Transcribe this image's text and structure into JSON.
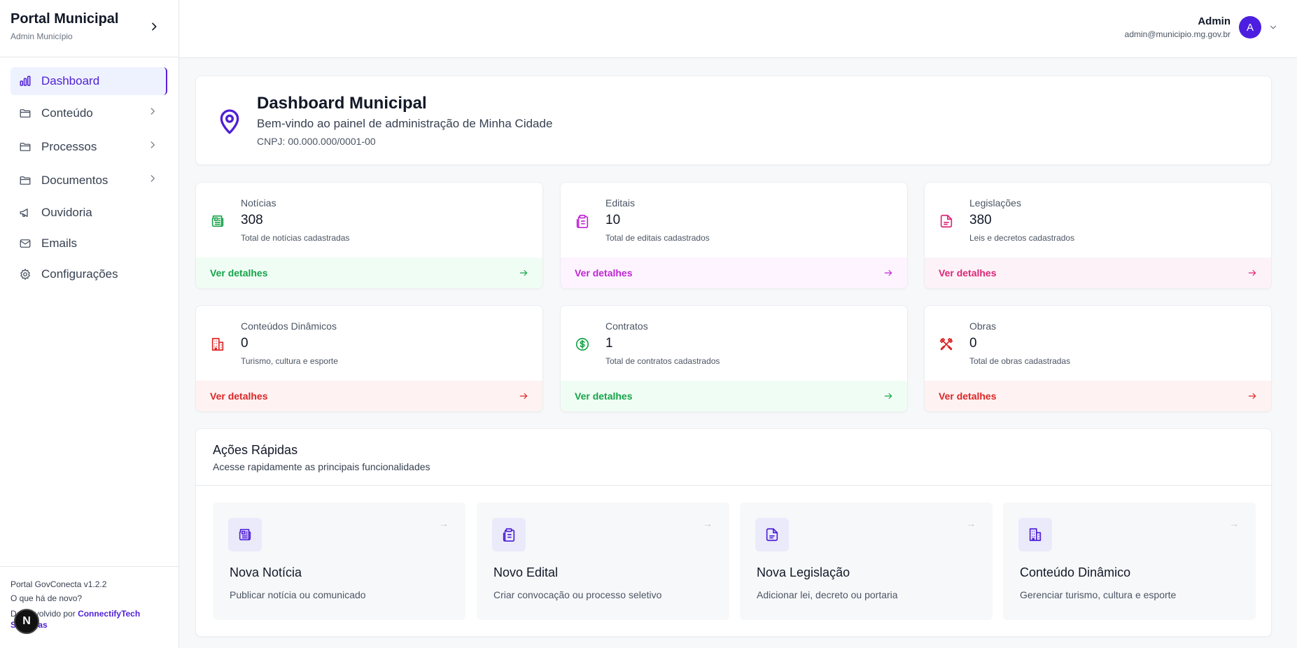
{
  "sidebar": {
    "brand_title": "Portal Municipal",
    "brand_subtitle": "Admin Município",
    "items": [
      {
        "label": "Dashboard",
        "icon": "bar-chart-icon"
      },
      {
        "label": "Conteúdo",
        "icon": "folder-icon"
      },
      {
        "label": "Processos",
        "icon": "folder-icon"
      },
      {
        "label": "Documentos",
        "icon": "folder-icon"
      },
      {
        "label": "Ouvidoria",
        "icon": "megaphone-icon"
      },
      {
        "label": "Emails",
        "icon": "mail-icon"
      },
      {
        "label": "Configurações",
        "icon": "gear-icon"
      }
    ],
    "footer": {
      "version": "Portal GovConecta v1.2.2",
      "whats_new": "O que há de novo?",
      "developed_by": "Desenvolvido por ",
      "company": "ConnectifyTech Sistemas"
    },
    "badge": "N"
  },
  "header": {
    "user_name": "Admin",
    "user_email": "admin@municipio.mg.gov.br",
    "avatar_letter": "A"
  },
  "welcome": {
    "title": "Dashboard Municipal",
    "subtitle": "Bem-vindo ao painel de administração de Minha Cidade",
    "cnpj": "CNPJ: 00.000.000/0001-00"
  },
  "stats": [
    {
      "label": "Notícias",
      "value": "308",
      "desc": "Total de notícias cadastradas",
      "link": "Ver detalhes",
      "color": "#16a34a",
      "bg": "#f0fdf4",
      "icon": "newspaper-icon"
    },
    {
      "label": "Editais",
      "value": "10",
      "desc": "Total de editais cadastrados",
      "link": "Ver detalhes",
      "color": "#c026d3",
      "bg": "#fdf4ff",
      "icon": "clipboard-icon"
    },
    {
      "label": "Legislações",
      "value": "380",
      "desc": "Leis e decretos cadastrados",
      "link": "Ver detalhes",
      "color": "#db2777",
      "bg": "#fdf2f8",
      "icon": "file-icon"
    },
    {
      "label": "Conteúdos Dinâmicos",
      "value": "0",
      "desc": "Turismo, cultura e esporte",
      "link": "Ver detalhes",
      "color": "#dc2626",
      "bg": "#fef2f2",
      "icon": "building-icon"
    },
    {
      "label": "Contratos",
      "value": "1",
      "desc": "Total de contratos cadastrados",
      "link": "Ver detalhes",
      "color": "#16a34a",
      "bg": "#f0fdf4",
      "icon": "dollar-circle-icon"
    },
    {
      "label": "Obras",
      "value": "0",
      "desc": "Total de obras cadastradas",
      "link": "Ver detalhes",
      "color": "#dc2626",
      "bg": "#fef2f2",
      "icon": "tools-icon"
    }
  ],
  "quick": {
    "title": "Ações Rápidas",
    "subtitle": "Acesse rapidamente as principais funcionalidades",
    "actions": [
      {
        "title": "Nova Notícia",
        "desc": "Publicar notícia ou comunicado",
        "icon": "newspaper-icon"
      },
      {
        "title": "Novo Edital",
        "desc": "Criar convocação ou processo seletivo",
        "icon": "clipboard-icon"
      },
      {
        "title": "Nova Legislação",
        "desc": "Adicionar lei, decreto ou portaria",
        "icon": "file-icon"
      },
      {
        "title": "Conteúdo Dinâmico",
        "desc": "Gerenciar turismo, cultura e esporte",
        "icon": "building-icon"
      }
    ],
    "arrow": "→"
  },
  "colors": {
    "accent": "#4f1fd4"
  }
}
